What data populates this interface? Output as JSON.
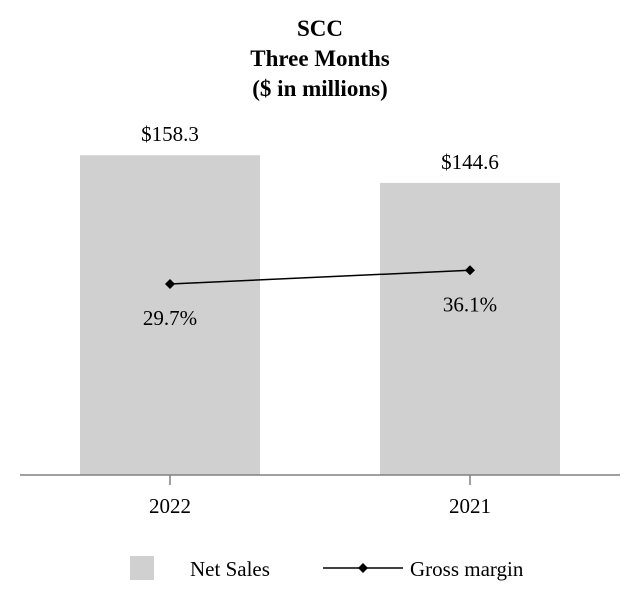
{
  "chart_data": {
    "type": "bar",
    "title": "SCC",
    "subtitle": "Three Months",
    "units": "($ in millions)",
    "categories": [
      "2022",
      "2021"
    ],
    "series": [
      {
        "name": "Net Sales",
        "kind": "bar",
        "values": [
          158.3,
          144.6
        ],
        "labels": [
          "$158.3",
          "$144.6"
        ],
        "color": "#d0d0d0"
      },
      {
        "name": "Gross margin",
        "kind": "line",
        "values": [
          29.7,
          36.1
        ],
        "labels": [
          "29.7%",
          "36.1%"
        ],
        "color": "#000000",
        "marker": "diamond"
      }
    ],
    "bar_scale": [
      0,
      200
    ],
    "margin_scale": [
      -60,
      100
    ],
    "grid": false,
    "legend_position": "bottom"
  }
}
